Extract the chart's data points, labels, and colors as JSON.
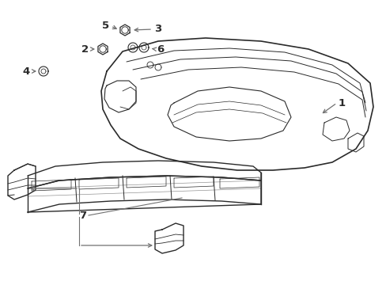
{
  "bg_color": "#ffffff",
  "line_color": "#2a2a2a",
  "label_color": "#2a2a2a",
  "arrow_color": "#707070",
  "figsize": [
    4.89,
    3.6
  ],
  "dpi": 100
}
